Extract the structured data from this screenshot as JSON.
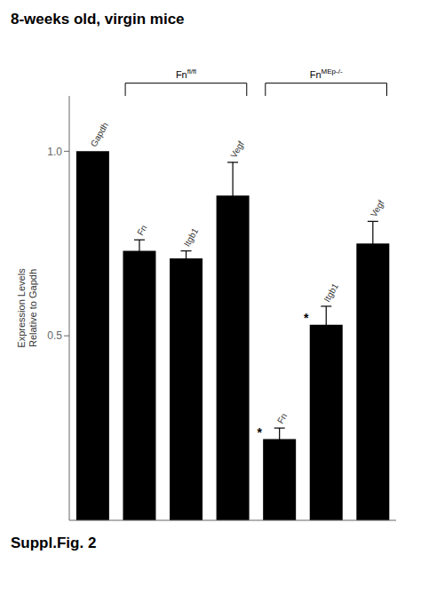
{
  "chart_data": {
    "type": "bar",
    "title": "8-weeks old, virgin mice",
    "categories": [
      "Gapdh",
      "Fn",
      "Itgb1",
      "Vegf",
      "Fn",
      "Itgb1",
      "Vegf"
    ],
    "values": [
      1.0,
      0.73,
      0.71,
      0.88,
      0.22,
      0.53,
      0.75
    ],
    "errors": [
      0.0,
      0.03,
      0.02,
      0.09,
      0.03,
      0.05,
      0.06
    ],
    "color": "#000000",
    "ylim": [
      0,
      1.15
    ],
    "yticks": [
      0.5,
      {
        "value": 1.0,
        "label": "1.0"
      }
    ],
    "ylabel": "Expression Levels\nRelative to Gapdh",
    "annotations": [
      {
        "text": "Fn",
        "superscript": "fl/fl",
        "from": 1,
        "to": 3
      },
      {
        "text": "Fn",
        "superscript": "MEp-/-",
        "from": 4,
        "to": 6
      },
      {
        "text": "*",
        "category": 4
      },
      {
        "text": "*",
        "category": 5
      },
      {
        "text": "Suppl.Fig. 2"
      }
    ]
  }
}
